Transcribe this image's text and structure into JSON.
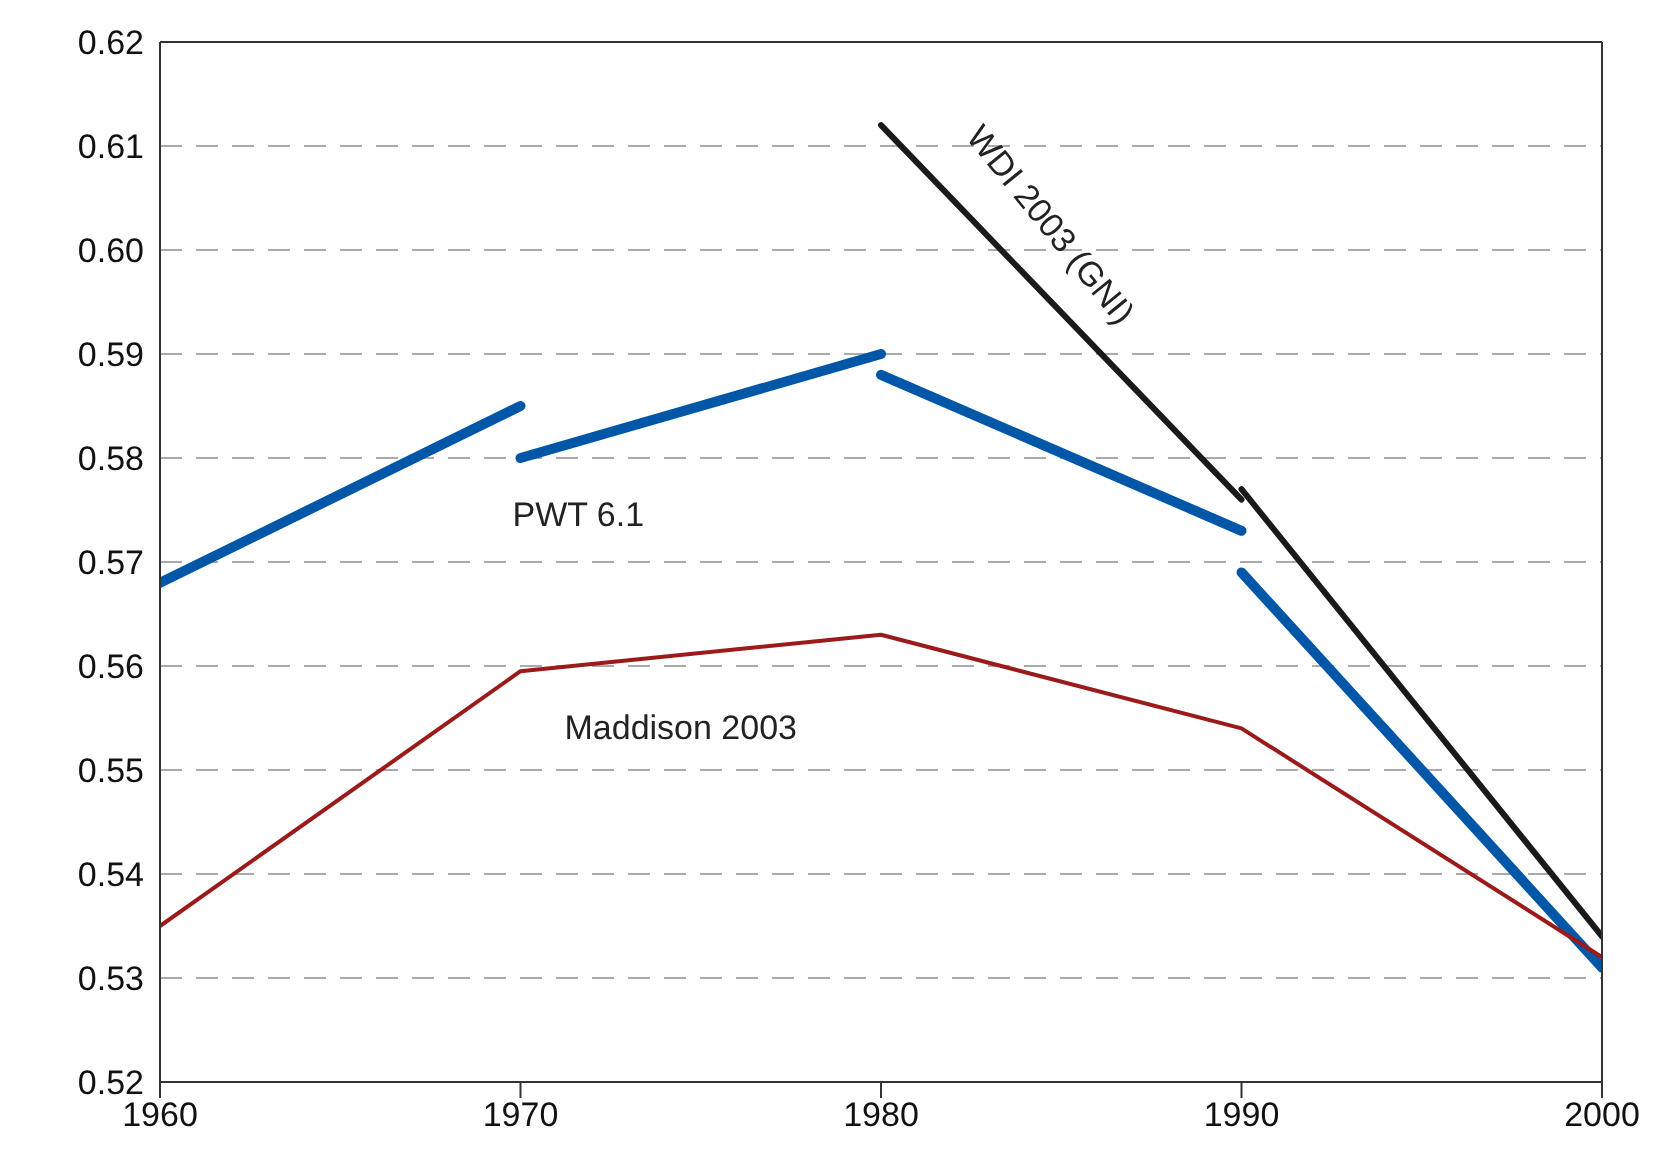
{
  "chart_data": {
    "type": "line",
    "xlim": [
      1960,
      2000
    ],
    "xticks": [
      1960,
      1970,
      1980,
      1990,
      2000
    ],
    "ylim": [
      0.52,
      0.62
    ],
    "yticks": [
      0.52,
      0.53,
      0.54,
      0.55,
      0.56,
      0.57,
      0.58,
      0.59,
      {
        "value": 0.6,
        "label": "0.60"
      },
      0.61,
      0.62
    ],
    "grid": "y",
    "marker": "none",
    "line_style": "solid",
    "series": [
      {
        "color": "#0057a8",
        "x": [
          1960,
          1970
        ],
        "values": [
          0.568,
          0.585
        ]
      },
      {
        "name": "PWT 6.1",
        "color": "#0057a8",
        "x": [
          1970,
          1980
        ],
        "values": [
          0.58,
          0.59
        ]
      },
      {
        "color": "#0057a8",
        "x": [
          1980,
          1990
        ],
        "values": [
          0.588,
          0.573
        ]
      },
      {
        "color": "#0057a8",
        "x": [
          1990,
          2000
        ],
        "values": [
          0.569,
          0.531
        ]
      },
      {
        "name": "WDI 2003 (GNI)",
        "color": "#1a1a1a",
        "x": [
          1980,
          1990
        ],
        "values": [
          0.612,
          0.576
        ]
      },
      {
        "color": "#1a1a1a",
        "x": [
          1990,
          2000
        ],
        "values": [
          0.577,
          0.534
        ]
      },
      {
        "name": "Maddison 2003",
        "color": "#9b1b1b",
        "x": [
          1960,
          1970,
          1980,
          1990,
          2000
        ],
        "values": [
          0.535,
          0.5595,
          0.563,
          0.554,
          0.532
        ]
      }
    ]
  }
}
